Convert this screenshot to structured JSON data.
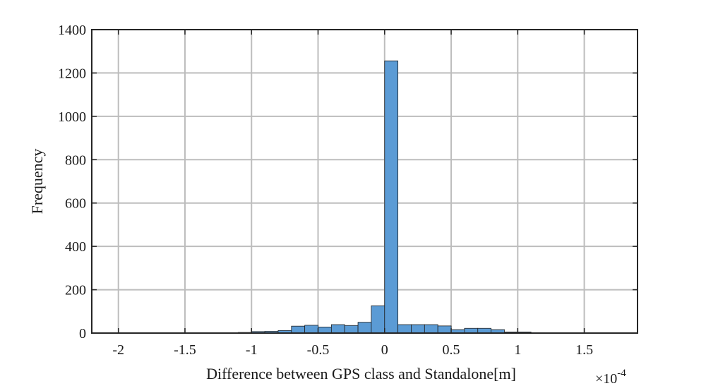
{
  "chart_data": {
    "type": "histogram",
    "xlabel": "Difference between GPS class and Standalone[m]",
    "ylabel": "Frequency",
    "x_multiplier_label": "×10",
    "x_multiplier_exponent": "-4",
    "x_scale_factor": 0.0001,
    "xlim": [
      -2.2,
      1.9
    ],
    "ylim": [
      0,
      1400
    ],
    "x_ticks": [
      -2,
      -1.5,
      -1,
      -0.5,
      0,
      0.5,
      1,
      1.5
    ],
    "x_tick_labels": [
      "-2",
      "-1.5",
      "-1",
      "-0.5",
      "0",
      "0.5",
      "1",
      "1.5"
    ],
    "y_ticks": [
      0,
      200,
      400,
      600,
      800,
      1000,
      1200,
      1400
    ],
    "y_tick_labels": [
      "0",
      "200",
      "400",
      "600",
      "800",
      "1000",
      "1200",
      "1400"
    ],
    "grid": true,
    "bin_width": 0.1,
    "bin_edges_start": -2.0,
    "bins": [
      {
        "start": -2.0,
        "end": -1.9,
        "count": 0
      },
      {
        "start": -1.9,
        "end": -1.8,
        "count": 0
      },
      {
        "start": -1.8,
        "end": -1.7,
        "count": 0
      },
      {
        "start": -1.7,
        "end": -1.6,
        "count": 0
      },
      {
        "start": -1.6,
        "end": -1.5,
        "count": 0
      },
      {
        "start": -1.5,
        "end": -1.4,
        "count": 0
      },
      {
        "start": -1.4,
        "end": -1.3,
        "count": 1
      },
      {
        "start": -1.3,
        "end": -1.2,
        "count": 0
      },
      {
        "start": -1.2,
        "end": -1.1,
        "count": 1
      },
      {
        "start": -1.1,
        "end": -1.0,
        "count": 3
      },
      {
        "start": -1.0,
        "end": -0.9,
        "count": 7
      },
      {
        "start": -0.9,
        "end": -0.8,
        "count": 8
      },
      {
        "start": -0.8,
        "end": -0.7,
        "count": 12
      },
      {
        "start": -0.7,
        "end": -0.6,
        "count": 32
      },
      {
        "start": -0.6,
        "end": -0.5,
        "count": 36
      },
      {
        "start": -0.5,
        "end": -0.4,
        "count": 28
      },
      {
        "start": -0.4,
        "end": -0.3,
        "count": 39
      },
      {
        "start": -0.3,
        "end": -0.2,
        "count": 35
      },
      {
        "start": -0.2,
        "end": -0.1,
        "count": 50
      },
      {
        "start": -0.1,
        "end": 0.0,
        "count": 126
      },
      {
        "start": 0.0,
        "end": 0.1,
        "count": 1256
      },
      {
        "start": 0.1,
        "end": 0.2,
        "count": 39
      },
      {
        "start": 0.2,
        "end": 0.3,
        "count": 39
      },
      {
        "start": 0.3,
        "end": 0.4,
        "count": 39
      },
      {
        "start": 0.4,
        "end": 0.5,
        "count": 33
      },
      {
        "start": 0.5,
        "end": 0.6,
        "count": 16
      },
      {
        "start": 0.6,
        "end": 0.7,
        "count": 22
      },
      {
        "start": 0.7,
        "end": 0.8,
        "count": 22
      },
      {
        "start": 0.8,
        "end": 0.9,
        "count": 16
      },
      {
        "start": 0.9,
        "end": 1.0,
        "count": 5
      },
      {
        "start": 1.0,
        "end": 1.1,
        "count": 5
      },
      {
        "start": 1.1,
        "end": 1.2,
        "count": 2
      },
      {
        "start": 1.2,
        "end": 1.3,
        "count": 1
      },
      {
        "start": 1.3,
        "end": 1.4,
        "count": 1
      },
      {
        "start": 1.4,
        "end": 1.5,
        "count": 0
      },
      {
        "start": 1.5,
        "end": 1.6,
        "count": 1
      },
      {
        "start": 1.6,
        "end": 1.7,
        "count": 0
      },
      {
        "start": 1.7,
        "end": 1.8,
        "count": 1
      }
    ],
    "bar_color": "#5B9BD5",
    "bar_edge_color": "#1f1f1f",
    "grid_color": "#bdbdbd",
    "axis_color": "#262626"
  }
}
